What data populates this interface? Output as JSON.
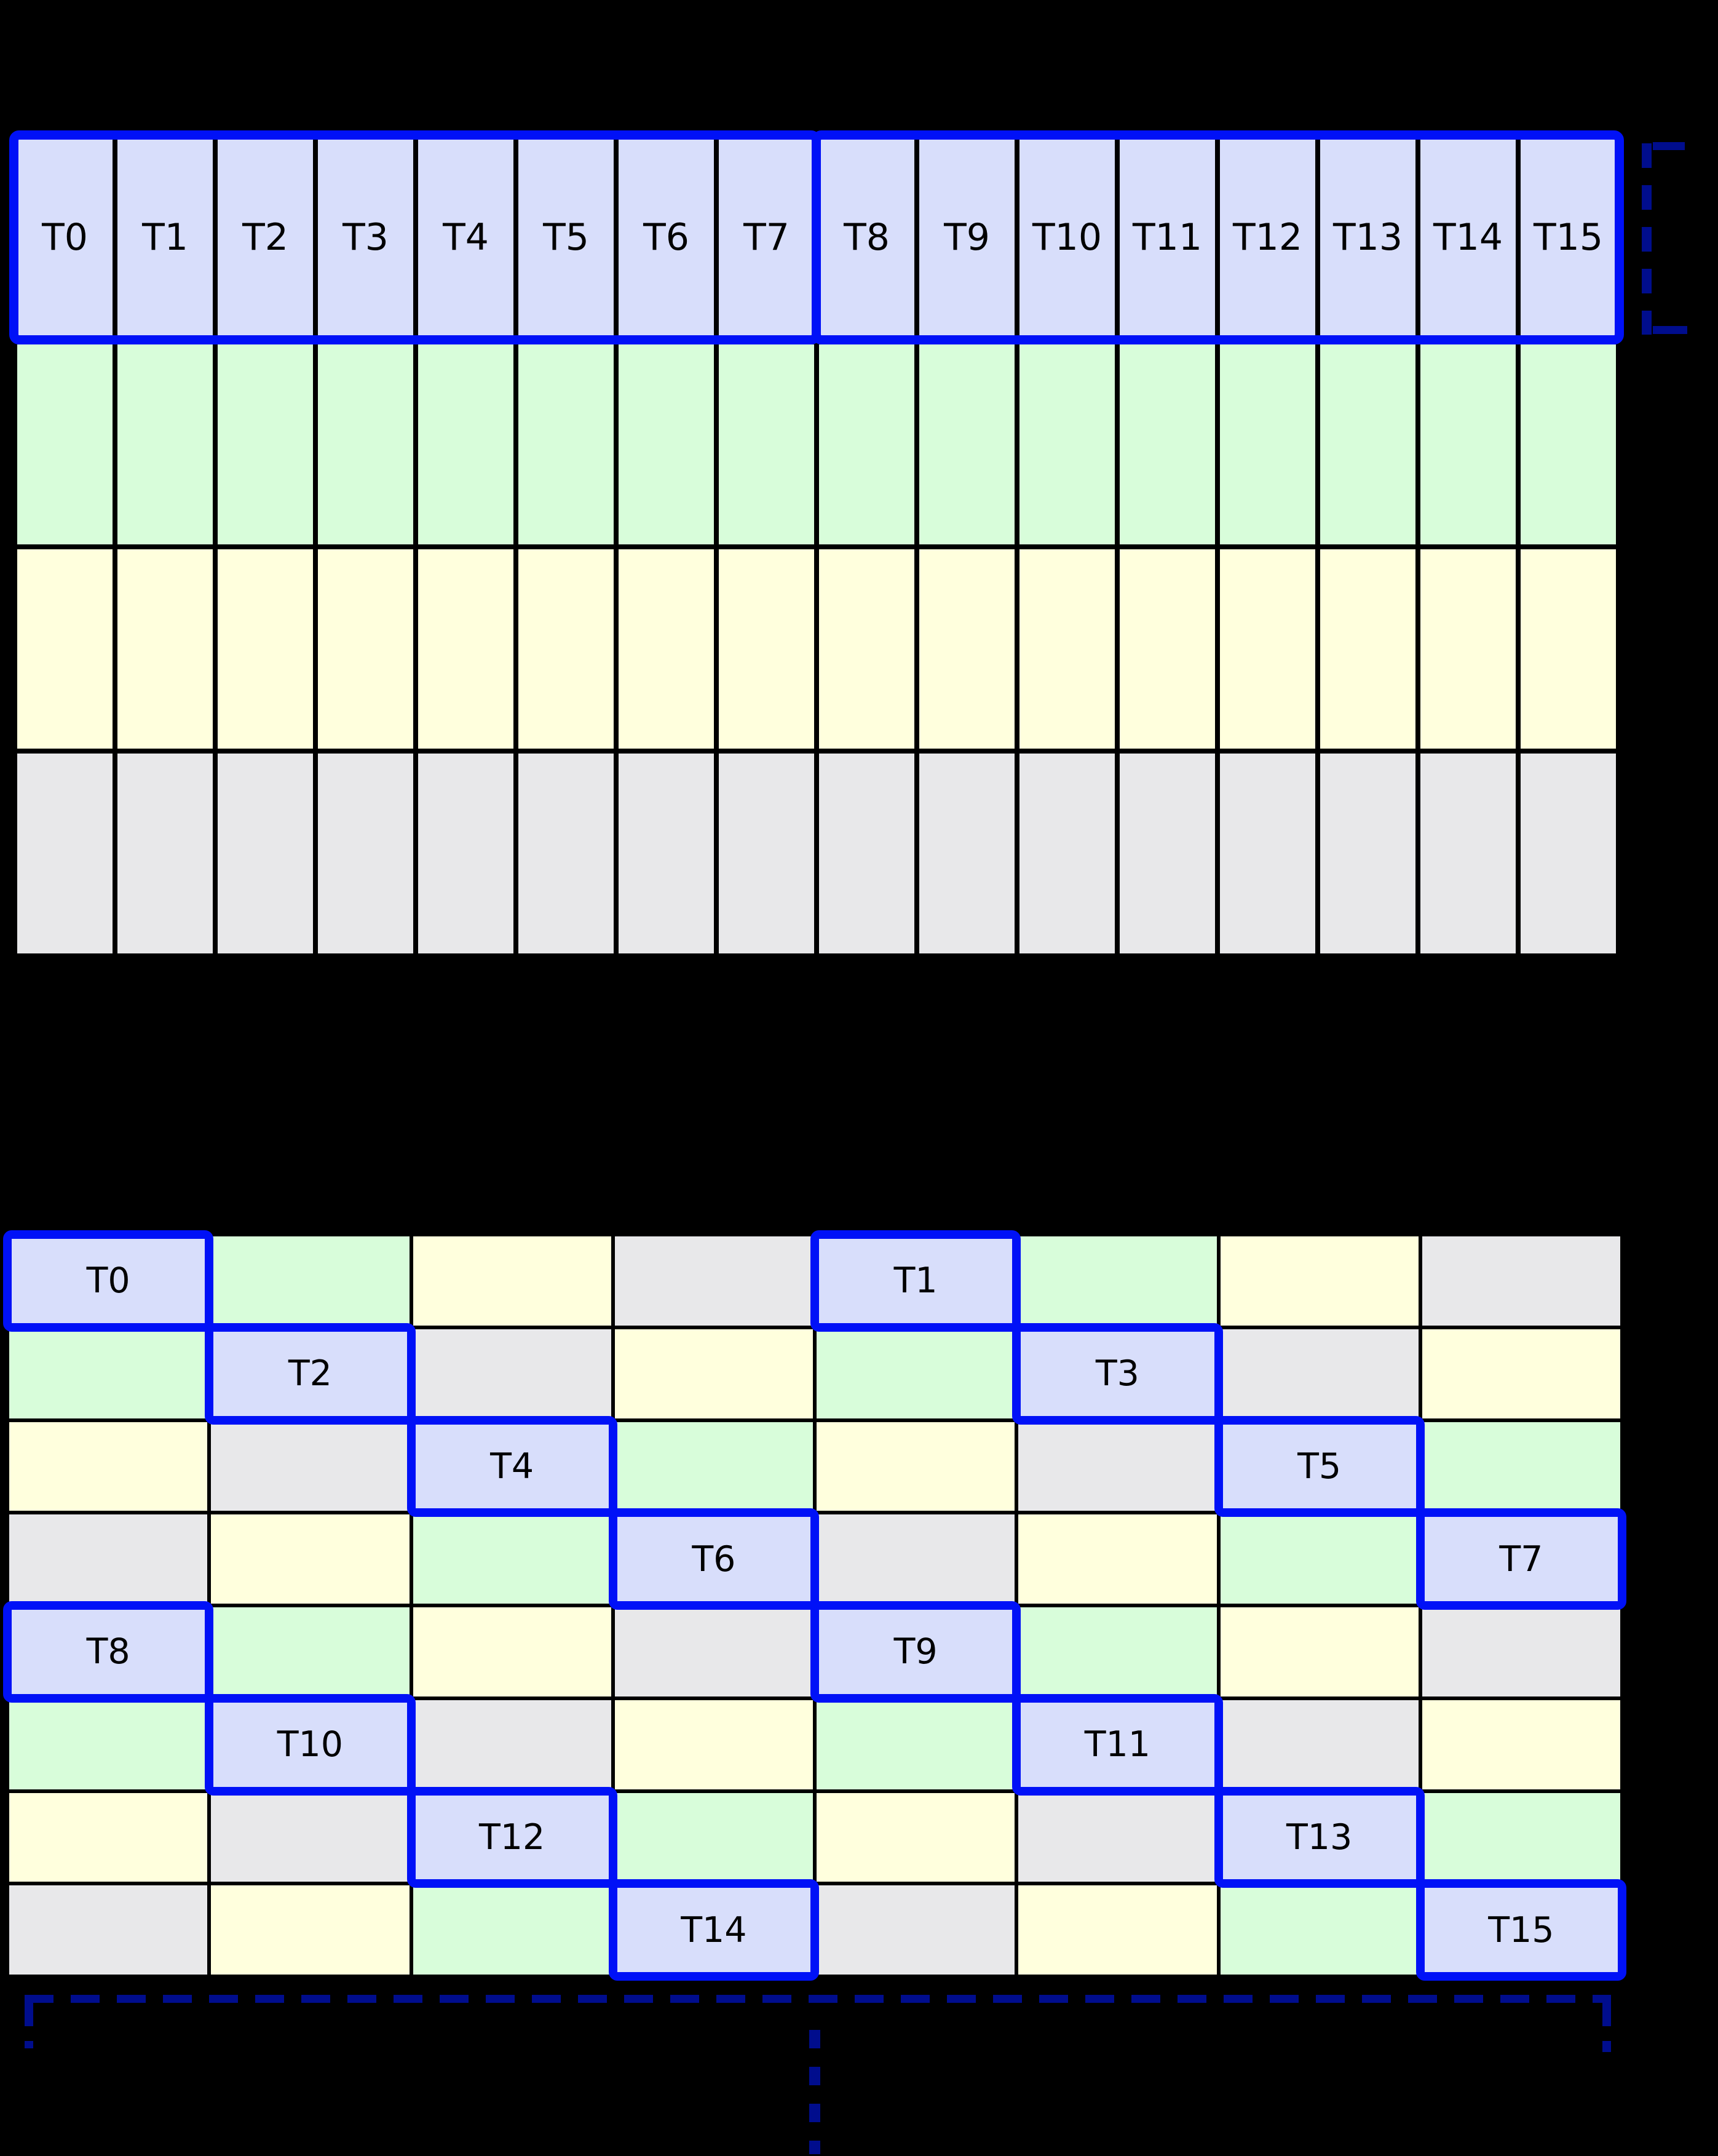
{
  "top_grid": {
    "columns": 16,
    "thread_labels": [
      "T0",
      "T1",
      "T2",
      "T3",
      "T4",
      "T5",
      "T6",
      "T7",
      "T8",
      "T9",
      "T10",
      "T11",
      "T12",
      "T13",
      "T14",
      "T15"
    ],
    "thread_groups": [
      {
        "first": "T0",
        "last": "T7"
      },
      {
        "first": "T8",
        "last": "T15"
      }
    ],
    "lower_row_colors": [
      "green",
      "yellow",
      "gray"
    ]
  },
  "bottom_grid": {
    "rows": 8,
    "columns": 8,
    "palette_order": [
      "lavender",
      "green",
      "yellow",
      "gray"
    ],
    "color_rule": "palette_order[(row mod 4) xor (col mod 4)]",
    "highlights": [
      {
        "row": 0,
        "col": 0,
        "label": "T0"
      },
      {
        "row": 0,
        "col": 4,
        "label": "T1"
      },
      {
        "row": 1,
        "col": 1,
        "label": "T2"
      },
      {
        "row": 1,
        "col": 5,
        "label": "T3"
      },
      {
        "row": 2,
        "col": 2,
        "label": "T4"
      },
      {
        "row": 2,
        "col": 6,
        "label": "T5"
      },
      {
        "row": 3,
        "col": 3,
        "label": "T6"
      },
      {
        "row": 3,
        "col": 7,
        "label": "T7"
      },
      {
        "row": 4,
        "col": 0,
        "label": "T8"
      },
      {
        "row": 4,
        "col": 4,
        "label": "T9"
      },
      {
        "row": 5,
        "col": 1,
        "label": "T10"
      },
      {
        "row": 5,
        "col": 5,
        "label": "T11"
      },
      {
        "row": 6,
        "col": 2,
        "label": "T12"
      },
      {
        "row": 6,
        "col": 6,
        "label": "T13"
      },
      {
        "row": 7,
        "col": 3,
        "label": "T14"
      },
      {
        "row": 7,
        "col": 7,
        "label": "T15"
      }
    ]
  },
  "annotations": {
    "row_bracket": "dashed bracket right of thread row",
    "grid_bracket": "dashed bracket under grid",
    "continuation": "vertical dashed ellipsis"
  },
  "colors": {
    "background": "#000000",
    "grid_line": "#000000",
    "highlight_border": "#0011f7",
    "bracket": "#000d8d",
    "label_text": "#000000",
    "palette": {
      "lavender": "#d8defb",
      "green": "#d8fdda",
      "yellow": "#ffffdd",
      "gray": "#e8e8ea"
    }
  }
}
